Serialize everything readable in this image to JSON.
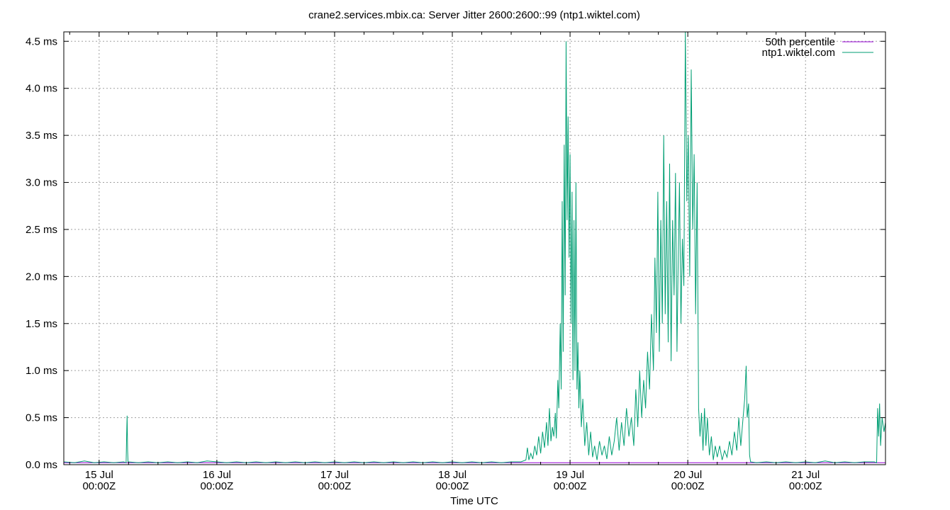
{
  "chart_data": {
    "type": "line",
    "title": "crane2.services.mbix.ca: Server Jitter 2600:2600::99 (ntp1.wiktel.com)",
    "xlabel": "Time UTC",
    "ylabel": "",
    "x_unit": "hours since 15 Jul 00:00Z",
    "xlim": [
      -7.2,
      160.3
    ],
    "ylim": [
      0,
      4.6
    ],
    "grid": true,
    "legend_position": "top-right",
    "y_ticks": [
      {
        "value": 0.0,
        "label": "0.0 ms"
      },
      {
        "value": 0.5,
        "label": "0.5 ms"
      },
      {
        "value": 1.0,
        "label": "1.0 ms"
      },
      {
        "value": 1.5,
        "label": "1.5 ms"
      },
      {
        "value": 2.0,
        "label": "2.0 ms"
      },
      {
        "value": 2.5,
        "label": "2.5 ms"
      },
      {
        "value": 3.0,
        "label": "3.0 ms"
      },
      {
        "value": 3.5,
        "label": "3.5 ms"
      },
      {
        "value": 4.0,
        "label": "4.0 ms"
      },
      {
        "value": 4.5,
        "label": "4.5 ms"
      }
    ],
    "x_ticks": [
      {
        "value": 0,
        "date": "15 Jul",
        "time": "00:00Z"
      },
      {
        "value": 24,
        "date": "16 Jul",
        "time": "00:00Z"
      },
      {
        "value": 48,
        "date": "17 Jul",
        "time": "00:00Z"
      },
      {
        "value": 72,
        "date": "18 Jul",
        "time": "00:00Z"
      },
      {
        "value": 96,
        "date": "19 Jul",
        "time": "00:00Z"
      },
      {
        "value": 120,
        "date": "20 Jul",
        "time": "00:00Z"
      },
      {
        "value": 144,
        "date": "21 Jul",
        "time": "00:00Z"
      }
    ],
    "series": [
      {
        "name": "50th percentile",
        "color": "#9400d3",
        "points": [
          [
            -7.2,
            0.02
          ],
          [
            94.0,
            0.02
          ],
          [
            94.0,
            0.02
          ],
          [
            160.3,
            0.02
          ]
        ]
      },
      {
        "name": "ntp1.wiktel.com",
        "color": "#009e73",
        "points": [
          [
            -7.2,
            0.03
          ],
          [
            -5,
            0.02
          ],
          [
            -3,
            0.04
          ],
          [
            -1,
            0.02
          ],
          [
            1,
            0.03
          ],
          [
            3,
            0.02
          ],
          [
            5,
            0.03
          ],
          [
            5.5,
            0.02
          ],
          [
            5.6,
            0.3
          ],
          [
            5.7,
            0.52
          ],
          [
            5.8,
            0.15
          ],
          [
            5.9,
            0.03
          ],
          [
            8,
            0.02
          ],
          [
            10,
            0.03
          ],
          [
            12,
            0.02
          ],
          [
            14,
            0.03
          ],
          [
            16,
            0.02
          ],
          [
            18,
            0.03
          ],
          [
            20,
            0.02
          ],
          [
            22,
            0.04
          ],
          [
            24,
            0.03
          ],
          [
            26,
            0.02
          ],
          [
            28,
            0.03
          ],
          [
            30,
            0.02
          ],
          [
            32,
            0.03
          ],
          [
            34,
            0.02
          ],
          [
            36,
            0.03
          ],
          [
            38,
            0.02
          ],
          [
            40,
            0.03
          ],
          [
            42,
            0.02
          ],
          [
            44,
            0.03
          ],
          [
            46,
            0.02
          ],
          [
            48,
            0.03
          ],
          [
            50,
            0.02
          ],
          [
            52,
            0.03
          ],
          [
            54,
            0.02
          ],
          [
            56,
            0.03
          ],
          [
            58,
            0.02
          ],
          [
            60,
            0.03
          ],
          [
            62,
            0.02
          ],
          [
            64,
            0.03
          ],
          [
            66,
            0.02
          ],
          [
            68,
            0.03
          ],
          [
            70,
            0.02
          ],
          [
            72,
            0.03
          ],
          [
            74,
            0.02
          ],
          [
            76,
            0.03
          ],
          [
            78,
            0.02
          ],
          [
            80,
            0.03
          ],
          [
            82,
            0.02
          ],
          [
            84,
            0.03
          ],
          [
            86,
            0.03
          ],
          [
            87.0,
            0.05
          ],
          [
            87.3,
            0.18
          ],
          [
            87.6,
            0.05
          ],
          [
            88.0,
            0.12
          ],
          [
            88.4,
            0.06
          ],
          [
            88.8,
            0.2
          ],
          [
            89.2,
            0.1
          ],
          [
            89.6,
            0.3
          ],
          [
            90.0,
            0.12
          ],
          [
            90.4,
            0.35
          ],
          [
            90.8,
            0.18
          ],
          [
            91.2,
            0.45
          ],
          [
            91.5,
            0.2
          ],
          [
            91.8,
            0.6
          ],
          [
            92.1,
            0.25
          ],
          [
            92.4,
            0.4
          ],
          [
            92.7,
            0.3
          ],
          [
            93.0,
            0.55
          ],
          [
            93.2,
            0.28
          ],
          [
            93.5,
            0.9
          ],
          [
            93.7,
            0.6
          ],
          [
            94.0,
            1.5
          ],
          [
            94.2,
            0.8
          ],
          [
            94.4,
            2.8
          ],
          [
            94.6,
            1.2
          ],
          [
            94.8,
            3.4
          ],
          [
            95.0,
            1.8
          ],
          [
            95.2,
            4.5
          ],
          [
            95.4,
            2.6
          ],
          [
            95.6,
            3.7
          ],
          [
            95.8,
            2.2
          ],
          [
            96.0,
            3.3
          ],
          [
            96.2,
            1.5
          ],
          [
            96.4,
            2.9
          ],
          [
            96.6,
            0.9
          ],
          [
            96.8,
            2.6
          ],
          [
            97.0,
            1.0
          ],
          [
            97.2,
            3.0
          ],
          [
            97.4,
            0.8
          ],
          [
            97.6,
            1.3
          ],
          [
            97.8,
            0.6
          ],
          [
            98.0,
            1.0
          ],
          [
            98.3,
            0.4
          ],
          [
            98.6,
            0.7
          ],
          [
            99.0,
            0.2
          ],
          [
            99.4,
            0.45
          ],
          [
            99.8,
            0.1
          ],
          [
            100.2,
            0.35
          ],
          [
            100.6,
            0.08
          ],
          [
            101.0,
            0.2
          ],
          [
            101.5,
            0.05
          ],
          [
            102,
            0.25
          ],
          [
            102.5,
            0.1
          ],
          [
            103,
            0.2
          ],
          [
            103.5,
            0.06
          ],
          [
            104,
            0.3
          ],
          [
            104.5,
            0.1
          ],
          [
            105,
            0.25
          ],
          [
            105.5,
            0.5
          ],
          [
            106,
            0.15
          ],
          [
            106.5,
            0.45
          ],
          [
            107,
            0.2
          ],
          [
            107.5,
            0.6
          ],
          [
            108,
            0.3
          ],
          [
            108.5,
            0.5
          ],
          [
            109,
            0.2
          ],
          [
            109.4,
            0.8
          ],
          [
            109.8,
            0.4
          ],
          [
            110.2,
            1.0
          ],
          [
            110.6,
            0.5
          ],
          [
            111.0,
            0.9
          ],
          [
            111.4,
            0.6
          ],
          [
            111.8,
            1.2
          ],
          [
            112.2,
            0.8
          ],
          [
            112.6,
            1.6
          ],
          [
            113.0,
            1.0
          ],
          [
            113.3,
            2.2
          ],
          [
            113.6,
            1.4
          ],
          [
            113.9,
            2.9
          ],
          [
            114.2,
            1.2
          ],
          [
            114.5,
            2.6
          ],
          [
            114.8,
            1.5
          ],
          [
            115.1,
            3.5
          ],
          [
            115.4,
            1.6
          ],
          [
            115.7,
            2.8
          ],
          [
            116.0,
            1.3
          ],
          [
            116.3,
            3.2
          ],
          [
            116.6,
            1.1
          ],
          [
            116.9,
            2.6
          ],
          [
            117.2,
            1.8
          ],
          [
            117.5,
            3.1
          ],
          [
            117.8,
            1.2
          ],
          [
            118.0,
            2.0
          ],
          [
            118.3,
            3.0
          ],
          [
            118.6,
            1.5
          ],
          [
            118.9,
            2.4
          ],
          [
            119.2,
            1.9
          ],
          [
            119.5,
            4.6
          ],
          [
            119.8,
            2.8
          ],
          [
            120.1,
            3.5
          ],
          [
            120.4,
            2.0
          ],
          [
            120.7,
            4.2
          ],
          [
            121.0,
            2.5
          ],
          [
            121.3,
            3.3
          ],
          [
            121.6,
            1.6
          ],
          [
            121.9,
            3.0
          ],
          [
            122.2,
            0.6
          ],
          [
            122.5,
            0.3
          ],
          [
            122.8,
            0.55
          ],
          [
            123.1,
            0.15
          ],
          [
            123.4,
            0.6
          ],
          [
            123.7,
            0.2
          ],
          [
            124.0,
            0.5
          ],
          [
            124.4,
            0.1
          ],
          [
            124.8,
            0.3
          ],
          [
            125.2,
            0.05
          ],
          [
            125.6,
            0.2
          ],
          [
            126.0,
            0.08
          ],
          [
            126.5,
            0.2
          ],
          [
            127,
            0.05
          ],
          [
            127.5,
            0.15
          ],
          [
            128,
            0.08
          ],
          [
            128.5,
            0.25
          ],
          [
            129,
            0.1
          ],
          [
            129.5,
            0.35
          ],
          [
            130,
            0.15
          ],
          [
            130.4,
            0.5
          ],
          [
            130.8,
            0.2
          ],
          [
            131.2,
            0.45
          ],
          [
            131.6,
            0.7
          ],
          [
            131.9,
            1.05
          ],
          [
            132.1,
            0.5
          ],
          [
            132.4,
            0.65
          ],
          [
            132.6,
            0.1
          ],
          [
            132.8,
            0.03
          ],
          [
            134,
            0.02
          ],
          [
            136,
            0.03
          ],
          [
            138,
            0.02
          ],
          [
            140,
            0.03
          ],
          [
            142,
            0.02
          ],
          [
            144,
            0.03
          ],
          [
            146,
            0.02
          ],
          [
            148,
            0.04
          ],
          [
            150,
            0.02
          ],
          [
            152,
            0.03
          ],
          [
            154,
            0.02
          ],
          [
            156,
            0.03
          ],
          [
            158,
            0.03
          ],
          [
            158.5,
            0.02
          ],
          [
            158.7,
            0.6
          ],
          [
            158.9,
            0.3
          ],
          [
            159.1,
            0.65
          ],
          [
            159.3,
            0.2
          ],
          [
            159.6,
            0.5
          ],
          [
            160.0,
            0.35
          ],
          [
            160.3,
            0.45
          ]
        ]
      }
    ]
  }
}
